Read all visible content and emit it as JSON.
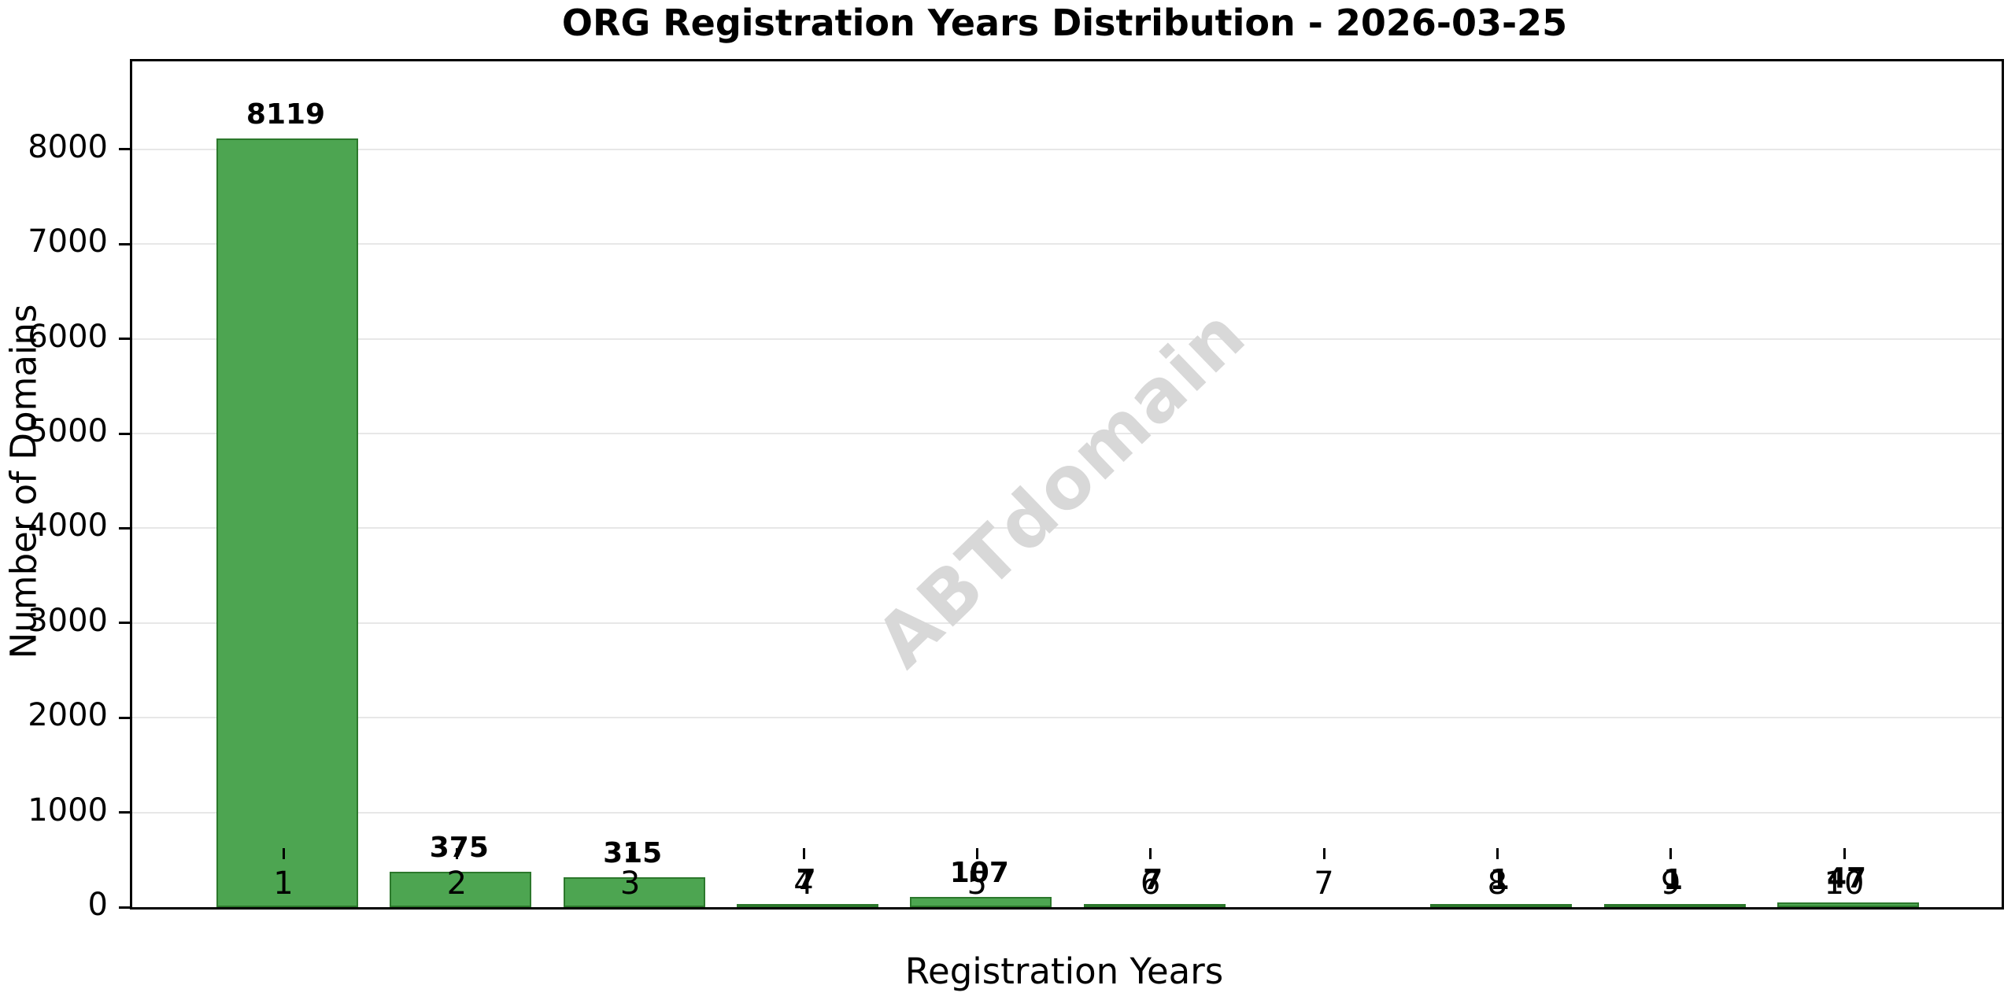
{
  "title": "ORG Registration Years Distribution - 2026-03-25",
  "xlabel": "Registration Years",
  "ylabel": "Number of Domains",
  "watermark": "ABTdomain",
  "colors": {
    "bar_fill": "#4da551",
    "bar_edge": "#2c782c",
    "gridline": "#e7e7e7",
    "spine": "#000000",
    "watermark": "#d8d8d8",
    "text": "#000000"
  },
  "chart_data": {
    "type": "bar",
    "title": "ORG Registration Years Distribution - 2026-03-25",
    "xlabel": "Registration Years",
    "ylabel": "Number of Domains",
    "categories": [
      "1",
      "2",
      "3",
      "4",
      "5",
      "6",
      "7",
      "8",
      "9",
      "10"
    ],
    "values": [
      8119,
      375,
      315,
      7,
      107,
      7,
      0,
      1,
      1,
      47
    ],
    "bar_labels": [
      "8119",
      "375",
      "315",
      "7",
      "107",
      "7",
      "",
      "1",
      "1",
      "47"
    ],
    "yticks": [
      0,
      1000,
      2000,
      3000,
      4000,
      5000,
      6000,
      7000,
      8000
    ],
    "ylim": [
      0,
      8930
    ],
    "grid": "horizontal-only",
    "legend": "none",
    "watermark": "ABTdomain"
  }
}
